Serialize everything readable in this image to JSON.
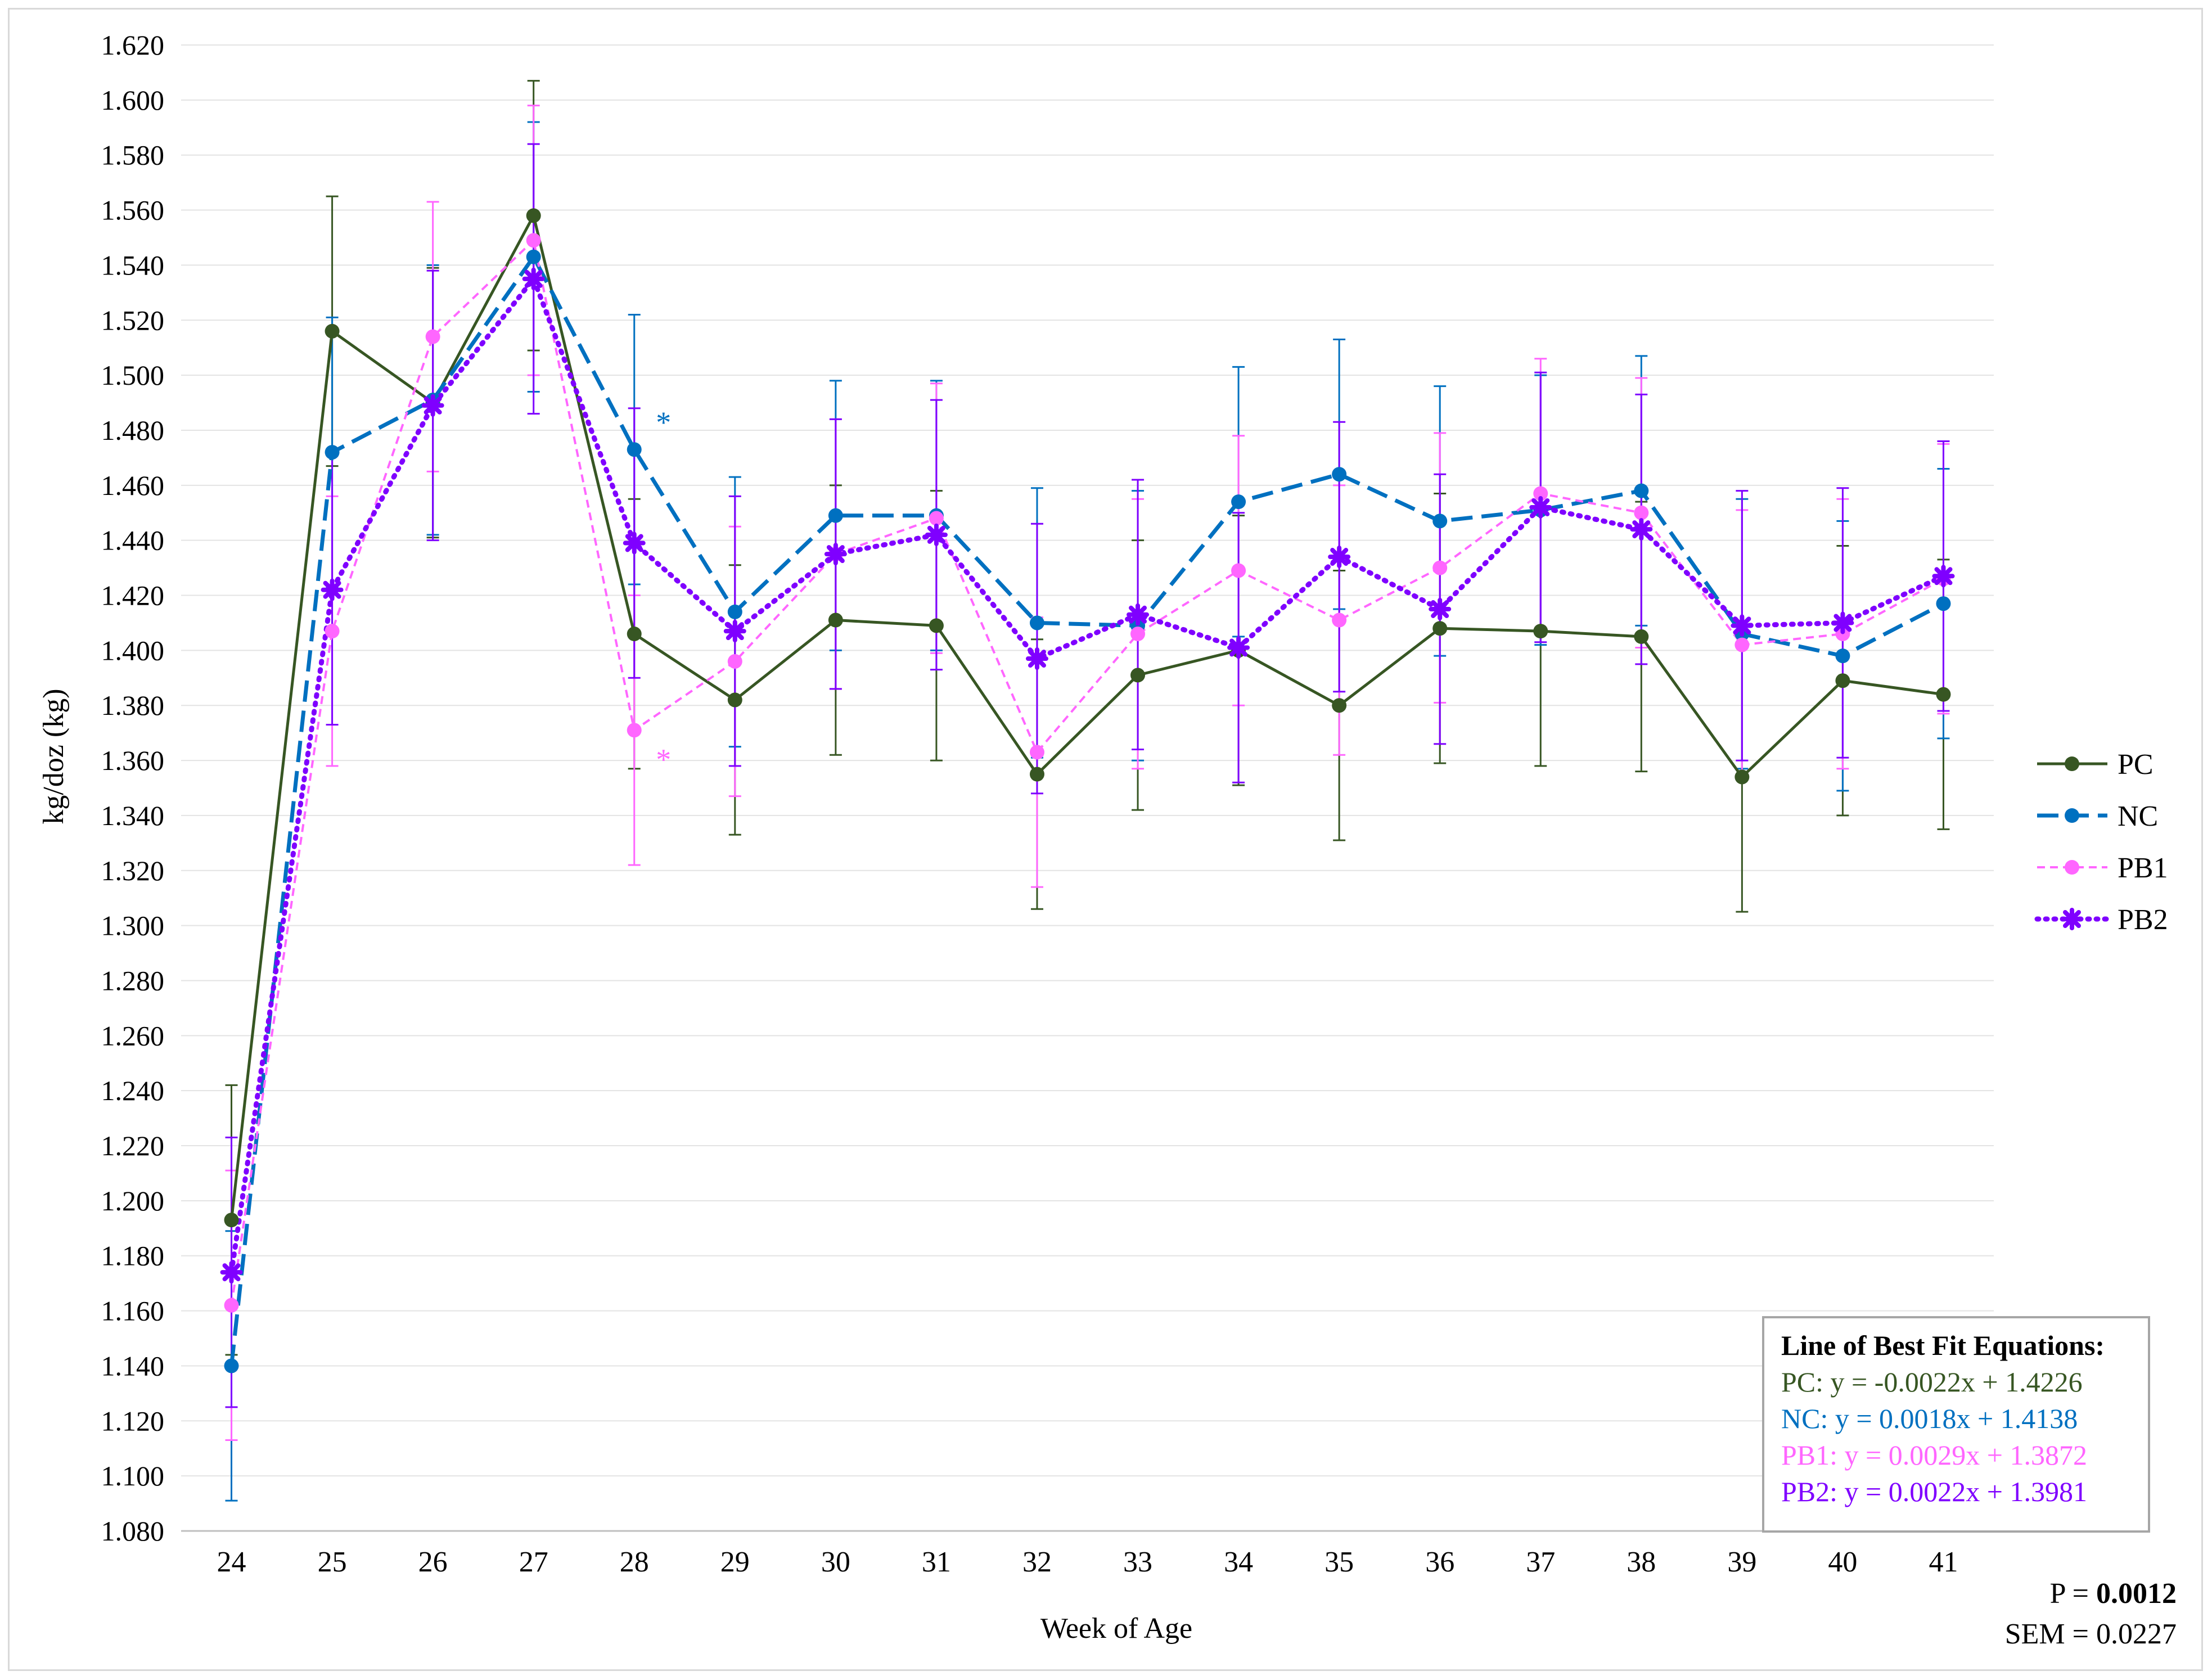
{
  "chart_data": {
    "type": "line",
    "title": "",
    "xlabel": "Week of Age",
    "ylabel": "kg/doz (kg)",
    "ylim": [
      1.08,
      1.62
    ],
    "ystep": 0.02,
    "grid": true,
    "legend_position": "right",
    "categories": [
      "24",
      "25",
      "26",
      "27",
      "28",
      "29",
      "30",
      "31",
      "32",
      "33",
      "34",
      "35",
      "36",
      "37",
      "38",
      "39",
      "40",
      "41"
    ],
    "error": 0.049,
    "series": [
      {
        "name": "PC",
        "color": "#375623",
        "dash": "solid",
        "marker": "circle",
        "values": [
          1.193,
          1.516,
          1.49,
          1.558,
          1.406,
          1.382,
          1.411,
          1.409,
          1.355,
          1.391,
          1.4,
          1.38,
          1.408,
          1.407,
          1.405,
          1.354,
          1.389,
          1.384
        ]
      },
      {
        "name": "NC",
        "color": "#0070c0",
        "dash": "longdash",
        "marker": "circle",
        "values": [
          1.14,
          1.472,
          1.491,
          1.543,
          1.473,
          1.414,
          1.449,
          1.449,
          1.41,
          1.409,
          1.454,
          1.464,
          1.447,
          1.451,
          1.458,
          1.406,
          1.398,
          1.417
        ]
      },
      {
        "name": "PB1",
        "color": "#ff66ff",
        "dash": "shortdash",
        "marker": "circle",
        "values": [
          1.162,
          1.407,
          1.514,
          1.549,
          1.371,
          1.396,
          1.435,
          1.448,
          1.363,
          1.406,
          1.429,
          1.411,
          1.43,
          1.457,
          1.45,
          1.402,
          1.406,
          1.426
        ]
      },
      {
        "name": "PB2",
        "color": "#7f00ff",
        "dash": "dot",
        "marker": "star",
        "values": [
          1.174,
          1.422,
          1.489,
          1.535,
          1.439,
          1.407,
          1.435,
          1.442,
          1.397,
          1.413,
          1.401,
          1.434,
          1.415,
          1.452,
          1.444,
          1.409,
          1.41,
          1.427
        ]
      }
    ],
    "annotations": [
      {
        "text": "*",
        "series": "NC",
        "category": "28"
      },
      {
        "text": "*",
        "series": "PB1",
        "category": "28"
      }
    ]
  },
  "equations": {
    "title": "Line of Best Fit Equations:",
    "lines": [
      {
        "text": "PC: y = -0.0022x + 1.4226",
        "color": "#375623"
      },
      {
        "text": "NC: y = 0.0018x + 1.4138",
        "color": "#0070c0"
      },
      {
        "text": "PB1: y = 0.0029x + 1.3872",
        "color": "#ff66ff"
      },
      {
        "text": "PB2: y = 0.0022x + 1.3981",
        "color": "#7f00ff"
      }
    ]
  },
  "stats": {
    "p_label": "P = ",
    "p_value": "0.0012",
    "sem": "SEM = 0.0227"
  }
}
